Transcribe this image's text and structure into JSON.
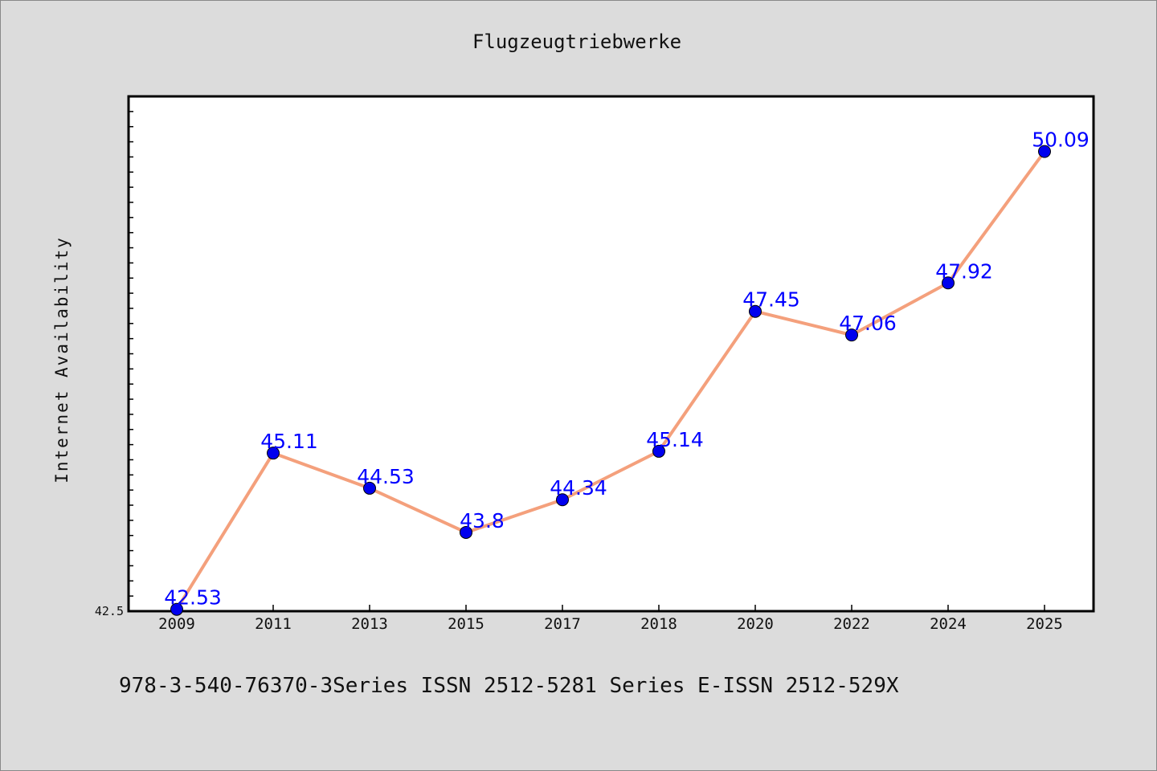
{
  "colors": {
    "background": "#dcdcdc",
    "plot_background": "#ffffff",
    "line": "#f4a07c",
    "marker": "#0000ee",
    "data_label": "#0000ff"
  },
  "chart_data": {
    "type": "line",
    "title": "Flugzeugtriebwerke",
    "xlabel": "",
    "ylabel": "Internet Availability",
    "categories": [
      "2009",
      "2011",
      "2013",
      "2015",
      "2017",
      "2018",
      "2020",
      "2022",
      "2024",
      "2025"
    ],
    "series": [
      {
        "values": [
          42.53,
          45.11,
          44.53,
          43.8,
          44.34,
          45.14,
          47.45,
          47.06,
          47.92,
          50.09
        ]
      }
    ],
    "data_labels": [
      "42.53",
      "45.11",
      "44.53",
      "43.8",
      "44.34",
      "45.14",
      "47.45",
      "47.06",
      "47.92",
      "50.09"
    ],
    "ylim": [
      42.5,
      51.0
    ],
    "y_tick_labels": [
      "42.5"
    ],
    "grid": false,
    "legend": "none"
  },
  "footer": {
    "text": "978-3-540-76370-3Series ISSN 2512-5281 Series E-ISSN 2512-529X"
  }
}
